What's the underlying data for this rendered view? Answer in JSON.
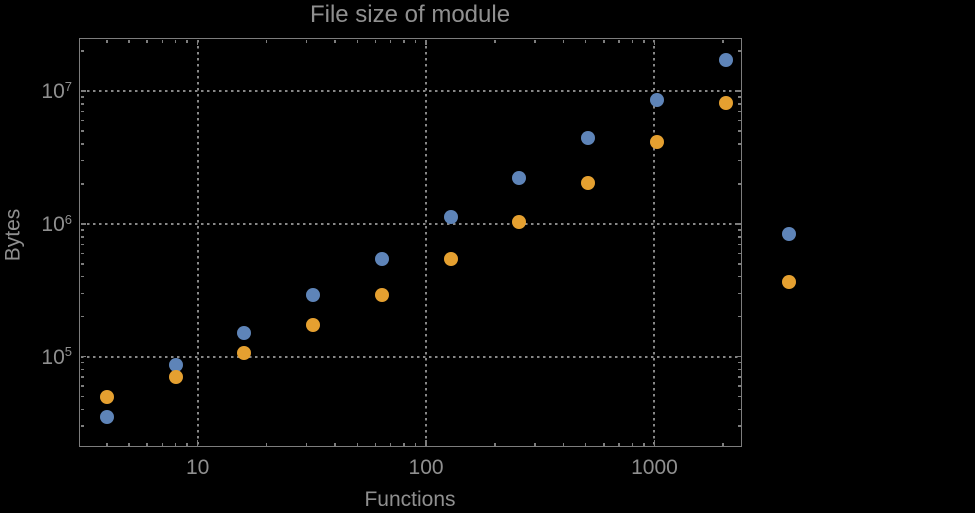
{
  "chart_data": {
    "type": "scatter",
    "title": "File size of module",
    "xlabel": "Functions",
    "ylabel": "Bytes",
    "x_scale": "log",
    "y_scale": "log",
    "grid": "dotted",
    "legend": "none",
    "xlim": [
      3.07,
      2380
    ],
    "ylim": [
      21400,
      24500000
    ],
    "x_ticks": [
      {
        "value": 10,
        "label": "10"
      },
      {
        "value": 100,
        "label": "100"
      },
      {
        "value": 1000,
        "label": "1000"
      }
    ],
    "y_ticks": [
      {
        "value": 100000,
        "base": "10",
        "exp": "5"
      },
      {
        "value": 1000000,
        "base": "10",
        "exp": "6"
      },
      {
        "value": 10000000,
        "base": "10",
        "exp": "7"
      }
    ],
    "x": [
      4,
      8,
      16,
      32,
      64,
      128,
      256,
      512,
      1024,
      2048,
      3900
    ],
    "series": [
      {
        "name": "blue",
        "color": "#5E84B8",
        "values": [
          34800,
          85900,
          150000,
          290000,
          547000,
          1120000,
          2200000,
          4410000,
          8570000,
          17100000,
          833000
        ]
      },
      {
        "name": "orange",
        "color": "#E5A030",
        "values": [
          49300,
          69700,
          107000,
          172000,
          293000,
          547000,
          1030000,
          2050000,
          4110000,
          8090000,
          362000
        ]
      }
    ]
  },
  "colors": {
    "background": "#000000",
    "frame": "#7d7d7d",
    "grid": "#878787",
    "text": "#8f8f8f"
  }
}
